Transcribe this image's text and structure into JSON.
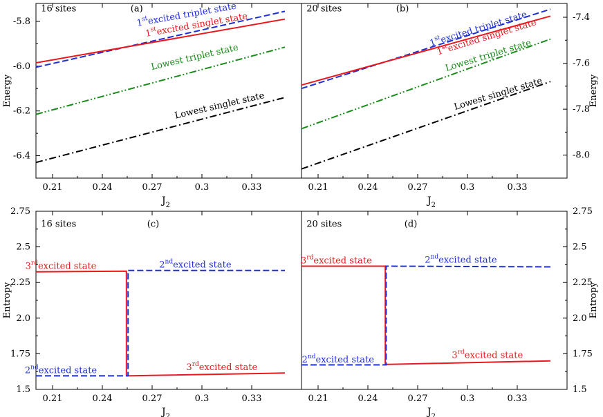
{
  "chart_data": [
    {
      "id": "a",
      "type": "line",
      "panel_label": "(a)",
      "sites_label": "16 sites",
      "xlabel": "J",
      "xlabel_sub": "2",
      "ylabel": "Energy",
      "xlim": [
        0.2,
        0.36
      ],
      "ylim": [
        -6.5,
        -5.72
      ],
      "xticks": [
        0.21,
        0.24,
        0.27,
        0.3,
        0.33
      ],
      "xtick_labels": [
        "0.21",
        "0.24",
        "0.27",
        "0.3",
        "0.33"
      ],
      "yticks": [
        -6.4,
        -6.2,
        -6.0,
        -5.8
      ],
      "ytick_labels": [
        "-6.4",
        "-6.2",
        "-6.0",
        "-5.8"
      ],
      "series": [
        {
          "name": "1st excited triplet state",
          "color": "#1f2fd6",
          "dash": "dashed",
          "x": [
            0.2,
            0.35
          ],
          "y": [
            -6.005,
            -5.755
          ]
        },
        {
          "name": "1st excited singlet state",
          "color": "#e8191e",
          "dash": "solid",
          "x": [
            0.2,
            0.35
          ],
          "y": [
            -5.985,
            -5.79
          ]
        },
        {
          "name": "Lowest triplet state",
          "color": "#1a8a1a",
          "dash": "dashdotdot",
          "x": [
            0.2,
            0.35
          ],
          "y": [
            -6.215,
            -5.915
          ]
        },
        {
          "name": "Lowest singlet state",
          "color": "#000000",
          "dash": "dashdot",
          "x": [
            0.2,
            0.35
          ],
          "y": [
            -6.43,
            -6.14
          ]
        }
      ],
      "annotations": [
        {
          "base": "1",
          "sup": "st",
          "rest": "excited triplet state",
          "color": "#1f2fd6",
          "angle": -10
        },
        {
          "base": "1",
          "sup": "st",
          "rest": "excited singlet state",
          "color": "#e8191e",
          "angle": -10
        },
        {
          "base": "Lowest triplet state",
          "sup": "",
          "rest": "",
          "color": "#1a8a1a",
          "angle": -13
        },
        {
          "base": "Lowest singlet state",
          "sup": "",
          "rest": "",
          "color": "#000000",
          "angle": -13
        }
      ]
    },
    {
      "id": "b",
      "type": "line",
      "panel_label": "(b)",
      "sites_label": "20 sites",
      "xlabel": "J",
      "xlabel_sub": "2",
      "ylabel": "Energy",
      "xlim": [
        0.2,
        0.36
      ],
      "ylim": [
        -8.1,
        -7.34
      ],
      "xticks": [
        0.21,
        0.24,
        0.27,
        0.3,
        0.33
      ],
      "xtick_labels": [
        "0.21",
        "0.24",
        "0.27",
        "0.3",
        "0.33"
      ],
      "yticks": [
        -8.0,
        -7.8,
        -7.6,
        -7.4
      ],
      "ytick_labels": [
        "-8.0",
        "-7.8",
        "-7.6",
        "-7.4"
      ],
      "series": [
        {
          "name": "1st excited triplet state",
          "color": "#1f2fd6",
          "dash": "dashed",
          "x": [
            0.2,
            0.35
          ],
          "y": [
            -7.71,
            -7.365
          ]
        },
        {
          "name": "1st excited singlet state",
          "color": "#e8191e",
          "dash": "solid",
          "x": [
            0.2,
            0.35
          ],
          "y": [
            -7.695,
            -7.395
          ]
        },
        {
          "name": "Lowest triplet state",
          "color": "#1a8a1a",
          "dash": "dashdotdot",
          "x": [
            0.2,
            0.35
          ],
          "y": [
            -7.885,
            -7.495
          ]
        },
        {
          "name": "Lowest singlet state",
          "color": "#000000",
          "dash": "dashdot",
          "x": [
            0.2,
            0.35
          ],
          "y": [
            -8.06,
            -7.68
          ]
        }
      ],
      "annotations": [
        {
          "base": "1",
          "sup": "st",
          "rest": "excited triplet state",
          "color": "#1f2fd6",
          "angle": -17
        },
        {
          "base": "1",
          "sup": "st",
          "rest": "excited singlet state",
          "color": "#e8191e",
          "angle": -17
        },
        {
          "base": "Lowest triplet state",
          "sup": "",
          "rest": "",
          "color": "#1a8a1a",
          "angle": -17
        },
        {
          "base": "Lowest singlet state",
          "sup": "",
          "rest": "",
          "color": "#000000",
          "angle": -17
        }
      ]
    },
    {
      "id": "c",
      "type": "line",
      "panel_label": "(c)",
      "sites_label": "16 sites",
      "xlabel": "J",
      "xlabel_sub": "2",
      "ylabel": "Entropy",
      "xlim": [
        0.2,
        0.36
      ],
      "ylim": [
        1.5,
        2.75
      ],
      "xticks": [
        0.21,
        0.24,
        0.27,
        0.3,
        0.33
      ],
      "xtick_labels": [
        "0.21",
        "0.24",
        "0.27",
        "0.3",
        "0.33"
      ],
      "yticks": [
        1.5,
        1.75,
        2.0,
        2.25,
        2.5,
        2.75
      ],
      "ytick_labels": [
        "1.5",
        "1.75",
        "2.0",
        "2.25",
        "2.5",
        "2.75"
      ],
      "series": [
        {
          "name": "3rd excited state",
          "color": "#e8191e",
          "dash": "solid",
          "x": [
            0.2,
            0.2545,
            0.2545,
            0.35
          ],
          "y": [
            2.325,
            2.33,
            1.595,
            1.615
          ]
        },
        {
          "name": "2nd excited state",
          "color": "#1f2fd6",
          "dash": "dashed",
          "x": [
            0.2,
            0.2555,
            0.2555,
            0.35
          ],
          "y": [
            1.595,
            1.595,
            2.335,
            2.335
          ]
        }
      ],
      "annotations": [
        {
          "base": "3",
          "sup": "rd",
          "rest": "excited state",
          "color": "#e8191e",
          "angle": 0
        },
        {
          "base": "2",
          "sup": "nd",
          "rest": "excited state",
          "color": "#1f2fd6",
          "angle": 0
        },
        {
          "base": "2",
          "sup": "nd",
          "rest": "excited state",
          "color": "#1f2fd6",
          "angle": 0
        },
        {
          "base": "3",
          "sup": "rd",
          "rest": "excited state",
          "color": "#e8191e",
          "angle": 0
        }
      ]
    },
    {
      "id": "d",
      "type": "line",
      "panel_label": "(d)",
      "sites_label": "20 sites",
      "xlabel": "J",
      "xlabel_sub": "2",
      "ylabel": "Entropy",
      "xlim": [
        0.2,
        0.36
      ],
      "ylim": [
        1.5,
        2.75
      ],
      "xticks": [
        0.21,
        0.24,
        0.27,
        0.3,
        0.33
      ],
      "xtick_labels": [
        "0.21",
        "0.24",
        "0.27",
        "0.3",
        "0.33"
      ],
      "yticks": [
        1.5,
        1.75,
        2.0,
        2.25,
        2.5,
        2.75
      ],
      "ytick_labels": [
        "1.5",
        "1.75",
        "2.0",
        "2.25",
        "2.5",
        "2.75"
      ],
      "series": [
        {
          "name": "3rd excited state",
          "color": "#e8191e",
          "dash": "solid",
          "x": [
            0.2,
            0.2505,
            0.2505,
            0.35
          ],
          "y": [
            2.365,
            2.365,
            1.675,
            1.7
          ]
        },
        {
          "name": "2nd excited state",
          "color": "#1f2fd6",
          "dash": "dashed",
          "x": [
            0.2,
            0.251,
            0.251,
            0.35
          ],
          "y": [
            1.672,
            1.672,
            2.365,
            2.36
          ]
        }
      ],
      "annotations": [
        {
          "base": "3",
          "sup": "rd",
          "rest": "excited state",
          "color": "#e8191e",
          "angle": 0
        },
        {
          "base": "2",
          "sup": "nd",
          "rest": "excited state",
          "color": "#1f2fd6",
          "angle": 0
        },
        {
          "base": "2",
          "sup": "nd",
          "rest": "excited state",
          "color": "#1f2fd6",
          "angle": 0
        },
        {
          "base": "3",
          "sup": "rd",
          "rest": "excited state",
          "color": "#e8191e",
          "angle": 0
        }
      ]
    }
  ]
}
